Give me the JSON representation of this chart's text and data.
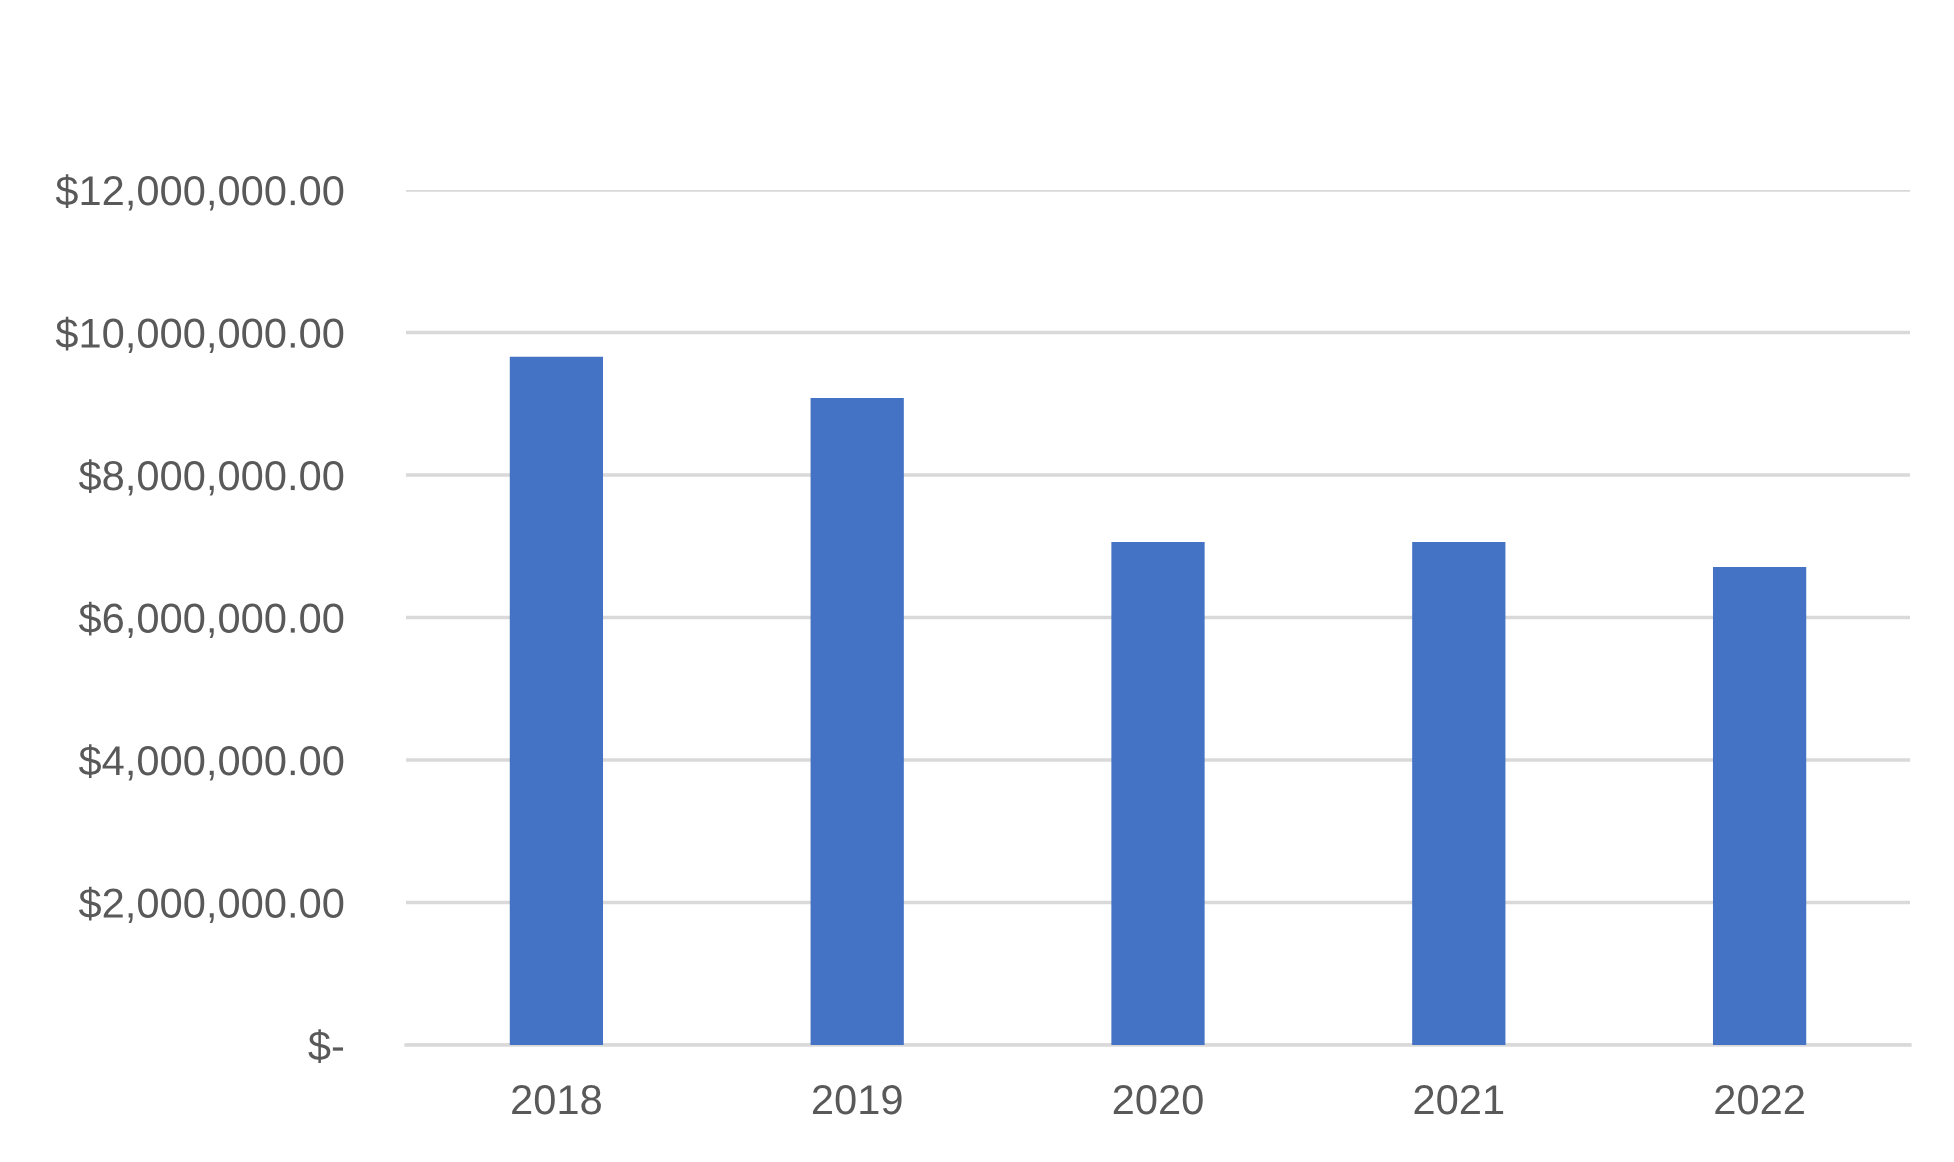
{
  "chart_data": {
    "type": "bar",
    "categories": [
      "2018",
      "2019",
      "2020",
      "2021",
      "2022"
    ],
    "values": [
      9660000,
      9080000,
      7060000,
      7060000,
      6710000
    ],
    "color": "#4472c4",
    "ylim": [
      0,
      12000000
    ],
    "yticks": [
      {
        "value": 0,
        "label": "$-"
      },
      {
        "value": 2000000,
        "label": "$2,000,000.00"
      },
      {
        "value": 4000000,
        "label": "$4,000,000.00"
      },
      {
        "value": 6000000,
        "label": "$6,000,000.00"
      },
      {
        "value": 8000000,
        "label": "$8,000,000.00"
      },
      {
        "value": 10000000,
        "label": "$10,000,000.00"
      },
      {
        "value": 12000000,
        "label": "$12,000,000.00"
      }
    ],
    "grid": "y"
  }
}
